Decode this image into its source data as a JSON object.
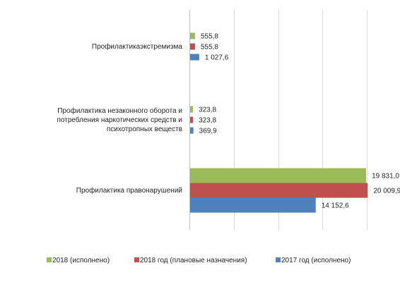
{
  "chart_data": {
    "type": "bar",
    "orientation": "horizontal",
    "categories": [
      [
        "Профилактикаэкстремизма"
      ],
      [
        "Профилактика незаконного оборота и",
        "потребления наркотических средств и",
        "психотропных веществ"
      ],
      [
        "Профилактика правонарушений"
      ]
    ],
    "series": [
      {
        "name": "2018 (исполнено)",
        "color": "#9bbb59",
        "values": [
          555.8,
          323.8,
          19831.0
        ],
        "labels": [
          "555,8",
          "323,8",
          "19 831,0"
        ]
      },
      {
        "name": "2018 год (плановые назначения)",
        "color": "#c0504d",
        "values": [
          555.8,
          323.8,
          20009.9
        ],
        "labels": [
          "555,8",
          "323,8",
          "20 009,9"
        ]
      },
      {
        "name": "2017 год (исполнено)",
        "color": "#4f81bd",
        "values": [
          1027.6,
          369.9,
          14152.6
        ],
        "labels": [
          "1 027,6",
          "369,9",
          "14 152,6"
        ]
      }
    ],
    "xlim": [
      0,
      25000
    ],
    "gridline_step": 5000,
    "tick_labels_shown": false,
    "grid": true,
    "legend_position": "bottom"
  }
}
